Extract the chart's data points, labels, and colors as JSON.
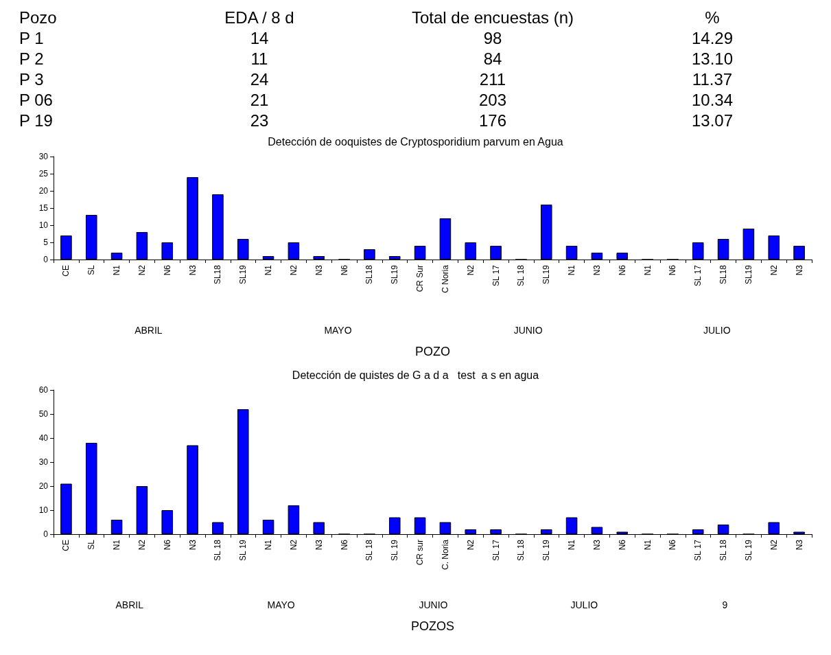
{
  "chart_data": [
    {
      "type": "other",
      "annotations": [
        "Pozo",
        "EDA / 8 d",
        "Total de encuestas (n)",
        "%",
        "P 1",
        "14",
        "98",
        "14.29",
        "P 2",
        "11",
        "84",
        "13.10",
        "P 3",
        "24",
        "211",
        "11.37",
        "P 06",
        "21",
        "203",
        "10.34",
        "P 19",
        "23",
        "176",
        "13.07"
      ]
    },
    {
      "type": "bar",
      "title": "Detección de ooquistes de Cryptosporidium parvum en Agua",
      "xlabel": "POZO",
      "categories": [
        "CE",
        "SL",
        "N1",
        "N2",
        "N6",
        "N3",
        "SL18",
        "SL19",
        "N1",
        "N2",
        "N3",
        "N6",
        "SL18",
        "SL19",
        "CR Sur",
        "C Noria",
        "N2",
        "SL 17",
        "SL 18",
        "SL19",
        "N1",
        "N3",
        "N6",
        "N1",
        "N6",
        "SL 17",
        "SL18",
        "SL19",
        "N2",
        "N3"
      ],
      "values": [
        7,
        13,
        2,
        8,
        5,
        24,
        19,
        6,
        1,
        5,
        1,
        0,
        3,
        1,
        4,
        12,
        5,
        4,
        0,
        16,
        4,
        2,
        2,
        0,
        0,
        5,
        6,
        9,
        7,
        4
      ],
      "color": "#0000ff",
      "ylim": [
        0,
        30
      ],
      "yticks": [
        0,
        5,
        10,
        15,
        20,
        25,
        30
      ],
      "grid": false,
      "annotations": [
        "ABRIL",
        "MAYO",
        "JUNIO",
        "JULIO"
      ]
    },
    {
      "type": "bar",
      "title": "Detección de quistes de G a d a   test  a s en agua",
      "xlabel": "POZOS",
      "categories": [
        "CE",
        "SL",
        "N1",
        "N2",
        "N6",
        "N3",
        "SL 18",
        "SL 19",
        "N1",
        "N2",
        "N3",
        "N6",
        "SL 18",
        "SL 19",
        "CR sur",
        "C. Noria",
        "N2",
        "SL 17",
        "SL 18",
        "SL 19",
        "N1",
        "N3",
        "N6",
        "N1",
        "N6",
        "SL 17",
        "SL 18",
        "SL 19",
        "N2",
        "N3"
      ],
      "values": [
        21,
        38,
        6,
        20,
        10,
        37,
        5,
        52,
        6,
        12,
        5,
        0,
        0,
        7,
        7,
        5,
        2,
        2,
        0,
        2,
        7,
        3,
        1,
        0,
        0,
        2,
        4,
        0,
        5,
        1
      ],
      "color": "#0000ff",
      "ylim": [
        0,
        60
      ],
      "yticks": [
        0,
        10,
        20,
        30,
        40,
        50,
        60
      ],
      "grid": false,
      "annotations": [
        "ABRIL",
        "MAYO",
        "JUNIO",
        "JULIO",
        "9"
      ]
    }
  ]
}
